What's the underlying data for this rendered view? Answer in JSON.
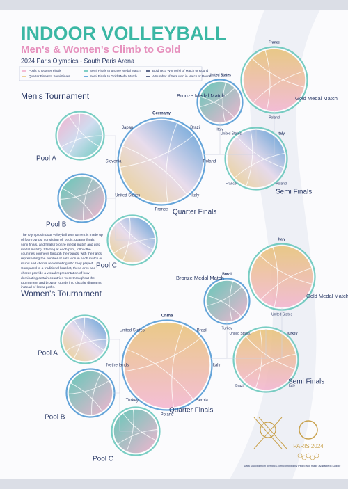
{
  "header": {
    "title": "INDOOR VOLLEYBALL",
    "subtitle": "Men's & Women's Climb to Gold",
    "caption": "2024 Paris Olympics - South Paris Arena"
  },
  "legend": [
    "Pools to Quarter Finals",
    "Quarter Finals to Semi Finals",
    "Semi Finals to Bronze Medal Match",
    "Semi Finals to Gold Medal Match",
    "Bold Text: Winner(s) of Match or Round",
    "A Number of Sets won in Match or Round"
  ],
  "sections": [
    {
      "title": "Men's Tournament",
      "rounds": [
        "Pool A",
        "Pool B",
        "Pool C",
        "Quarter Finals",
        "Semi Finals",
        "Bronze Medal Match",
        "Gold Medal Match"
      ],
      "quarter_finals": [
        "Germany",
        "Brazil",
        "Poland",
        "Italy",
        "France",
        "United States",
        "Slovenia",
        "Japan"
      ],
      "semi_finals": [
        "Italy",
        "Poland",
        "France",
        "United States"
      ],
      "bronze": [
        "United States",
        "Italy"
      ],
      "gold": [
        "France",
        "Poland"
      ]
    },
    {
      "title": "Women's Tournament",
      "rounds": [
        "Pool A",
        "Pool B",
        "Pool C",
        "Quarter Finals",
        "Semi Finals",
        "Bronze Medal Match",
        "Gold Medal Match"
      ],
      "quarter_finals": [
        "China",
        "Brazil",
        "Italy",
        "Serbia",
        "Poland",
        "Turkey",
        "Netherlands",
        "United States"
      ],
      "semi_finals": [
        "Turkey",
        "Italy",
        "Brazil",
        "United States"
      ],
      "bronze": [
        "Brazil",
        "Turkey"
      ],
      "gold": [
        "Italy",
        "United States"
      ]
    }
  ],
  "description": "The Olympics indoor volleyball tournament is made up of four rounds, consisting of: pools, quarter finals, semi finals, and finals (bronze medal match and gold medal match). Starting at each pool, follow the countries' journeys through the rounds, with their arcs representing the number of sets won in each match or round and chords representing who they played. Compared to a traditional bracket, these arcs and chords provide a visual representation of how dominating certain countries were throughout the tournament and browse rounds into circular diagrams instead of linear paths.",
  "logo": "PARIS 2024",
  "credit": "Data sourced from olympics.com compiled by Pedro and made available in Kaggle"
}
